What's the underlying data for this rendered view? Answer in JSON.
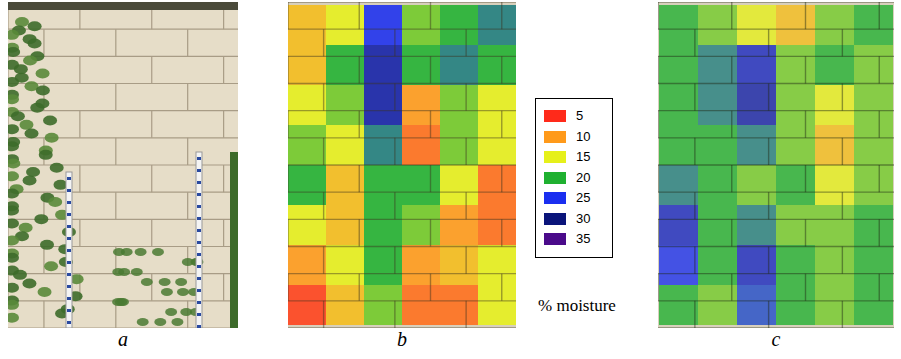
{
  "panel_labels": [
    "a",
    "b",
    "c"
  ],
  "chart_data": [
    {
      "type": "heatmap",
      "tick_labels": false,
      "cells": [
        [
          12,
          15,
          25,
          18,
          20,
          22
        ],
        [
          12,
          20,
          28,
          20,
          22,
          20
        ],
        [
          15,
          18,
          28,
          10,
          18,
          15
        ],
        [
          18,
          15,
          22,
          8,
          18,
          15
        ],
        [
          20,
          12,
          20,
          20,
          15,
          8
        ],
        [
          15,
          12,
          20,
          18,
          10,
          8
        ],
        [
          10,
          15,
          20,
          10,
          12,
          15
        ],
        [
          6,
          12,
          18,
          8,
          8,
          15
        ]
      ]
    },
    {
      "type": "heatmap",
      "tick_labels": false,
      "cells": [
        [
          20,
          18,
          15,
          12,
          18,
          20
        ],
        [
          20,
          22,
          27,
          18,
          20,
          18
        ],
        [
          20,
          22,
          28,
          18,
          15,
          18
        ],
        [
          20,
          20,
          22,
          18,
          12,
          18
        ],
        [
          22,
          20,
          18,
          20,
          15,
          18
        ],
        [
          27,
          20,
          22,
          18,
          18,
          20
        ],
        [
          25,
          20,
          27,
          20,
          18,
          20
        ],
        [
          20,
          18,
          24,
          20,
          18,
          20
        ]
      ]
    }
  ],
  "color_bar": {
    "title": "% moisture",
    "values": [
      5,
      10,
      15,
      20,
      25,
      30,
      35
    ],
    "colors": [
      "#ff2a1a",
      "#ff9a1a",
      "#e6f01a",
      "#1fb030",
      "#1a2ef0",
      "#0a147a",
      "#4a0a8a"
    ]
  }
}
